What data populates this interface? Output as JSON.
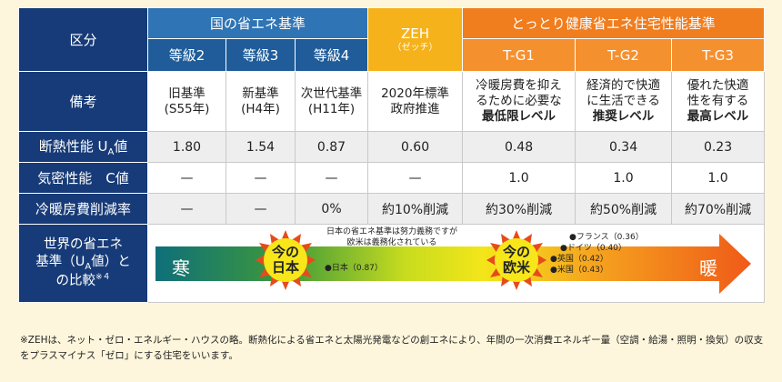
{
  "table": {
    "header": {
      "kubun": "区分",
      "national_group": "国の省エネ基準",
      "zeh": "ZEH",
      "zeh_reading": "（ゼッチ）",
      "tottori_group": "とっとり健康省エネ住宅性能基準",
      "grades": [
        "等級2",
        "等級3",
        "等級4"
      ],
      "tg": [
        "T-G1",
        "T-G2",
        "T-G3"
      ]
    },
    "rows": {
      "remarks_label": "備考",
      "remarks": [
        [
          "旧基準",
          "(S55年)"
        ],
        [
          "新基準",
          "(H4年)"
        ],
        [
          "次世代基準",
          "(H11年)"
        ],
        [
          "2020年標準",
          "政府推進"
        ],
        [
          "冷暖房費を抑え",
          "るために必要な",
          "最低限レベル"
        ],
        [
          "経済的で快適",
          "に生活できる",
          "推奨レベル"
        ],
        [
          "優れた快適",
          "性を有する",
          "最高レベル"
        ]
      ],
      "ua_label": "断熱性能 U",
      "ua_label_sub": "A",
      "ua_label_tail": "値",
      "ua_values": [
        "1.80",
        "1.54",
        "0.87",
        "0.60",
        "0.48",
        "0.34",
        "0.23"
      ],
      "c_label": "気密性能　C値",
      "c_values": [
        "—",
        "—",
        "—",
        "—",
        "1.0",
        "1.0",
        "1.0"
      ],
      "cost_label": "冷暖房費削減率",
      "cost_values": [
        "—",
        "—",
        "0%",
        "約10%削減",
        "約30%削減",
        "約50%削減",
        "約70%削減"
      ],
      "world_label_1": "世界の省エネ",
      "world_label_2": "基準（U",
      "world_label_2_sub": "A",
      "world_label_2_tail": "値）と",
      "world_label_3": "の比較",
      "world_label_3_sup": "※４"
    }
  },
  "band": {
    "cold": "寒",
    "warm": "暖",
    "japan_now_1": "今の",
    "japan_now_2": "日本",
    "western_now_1": "今の",
    "western_now_2": "欧米",
    "japan_note_1": "日本の省エネ基準は努力義務ですが",
    "japan_note_2": "欧米は義務化されている",
    "markers": [
      {
        "label": "●日本（0.87）"
      },
      {
        "label": "●フランス（0.36）"
      },
      {
        "label": "●ドイツ（0.40）"
      },
      {
        "label": "●英国（0.42）"
      },
      {
        "label": "●米国（0.43）"
      }
    ]
  },
  "footnote": "※ZEHは、ネット・ゼロ・エネルギー・ハウスの略。断熱化による省エネと太陽光発電などの創エネにより、年間の一次消費エネルギー量（空調・給湯・照明・換気）の収支をプラスマイナス「ゼロ」にする住宅をいいます。",
  "colors": {
    "navy": "#173b78",
    "blue": "#2f74b5",
    "zeh_yellow": "#f6b21a",
    "orange": "#f07d1e",
    "background": "#fdf6dc"
  }
}
